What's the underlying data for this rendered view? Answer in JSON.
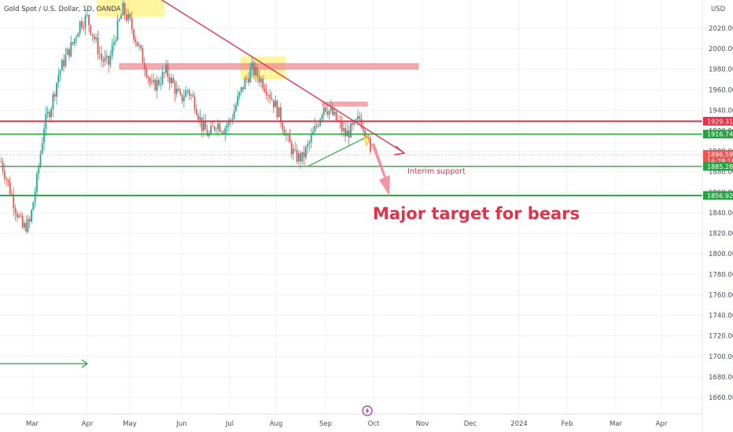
{
  "symbol_title": "Gold Spot / U.S. Dollar, 1D, OANDA",
  "currency": "USD",
  "timer": "14:28:18",
  "colors": {
    "up": "#26a69a",
    "down": "#ef5350",
    "resistance": "#e0334a",
    "support": "#2aa044",
    "grid": "#eef0f3",
    "zone_yellow": "#fff176",
    "zone_red": "#f48b95"
  },
  "chart_data": {
    "type": "candlestick",
    "x_labels": [
      "Mar",
      "Apr",
      "May",
      "Jun",
      "Jul",
      "Aug",
      "Sep",
      "Oct",
      "Nov",
      "Dec",
      "2024",
      "Feb",
      "Mar",
      "Apr"
    ],
    "y_ticks": [
      1660,
      1680,
      1700,
      1720,
      1740,
      1760,
      1780,
      1800,
      1820,
      1840,
      1860,
      1880,
      1900,
      1920,
      1940,
      1960,
      1980,
      2000,
      2020
    ],
    "ylim": [
      1640,
      2042
    ],
    "grid": true,
    "price_levels": [
      {
        "label": "1929.317",
        "value": 1929.317,
        "kind": "resistance"
      },
      {
        "label": "1916.747",
        "value": 1916.747,
        "kind": "support"
      },
      {
        "label": "1896.590",
        "value": 1896.59,
        "kind": "last"
      },
      {
        "label": "1885.282",
        "value": 1885.282,
        "kind": "support"
      },
      {
        "label": "1856.927",
        "value": 1856.927,
        "kind": "support"
      }
    ],
    "trend_path": [
      [
        0,
        1890
      ],
      [
        4,
        1868
      ],
      [
        8,
        1845
      ],
      [
        12,
        1825
      ],
      [
        16,
        1830
      ],
      [
        20,
        1872
      ],
      [
        24,
        1925
      ],
      [
        28,
        1945
      ],
      [
        32,
        1975
      ],
      [
        36,
        1992
      ],
      [
        40,
        2005
      ],
      [
        44,
        2025
      ],
      [
        48,
        2030
      ],
      [
        52,
        2010
      ],
      [
        56,
        1990
      ],
      [
        60,
        1985
      ],
      [
        64,
        2015
      ],
      [
        68,
        2038
      ],
      [
        72,
        2025
      ],
      [
        76,
        2005
      ],
      [
        80,
        1985
      ],
      [
        84,
        1962
      ],
      [
        88,
        1968
      ],
      [
        92,
        1978
      ],
      [
        96,
        1965
      ],
      [
        100,
        1950
      ],
      [
        104,
        1960
      ],
      [
        108,
        1948
      ],
      [
        112,
        1925
      ],
      [
        116,
        1915
      ],
      [
        120,
        1928
      ],
      [
        124,
        1922
      ],
      [
        128,
        1930
      ],
      [
        132,
        1950
      ],
      [
        136,
        1968
      ],
      [
        140,
        1980
      ],
      [
        144,
        1972
      ],
      [
        148,
        1962
      ],
      [
        152,
        1948
      ],
      [
        156,
        1932
      ],
      [
        160,
        1910
      ],
      [
        164,
        1895
      ],
      [
        168,
        1893
      ],
      [
        172,
        1908
      ],
      [
        176,
        1925
      ],
      [
        180,
        1945
      ],
      [
        184,
        1938
      ],
      [
        188,
        1928
      ],
      [
        192,
        1916
      ],
      [
        196,
        1922
      ],
      [
        200,
        1932
      ],
      [
        204,
        1918
      ],
      [
        206,
        1896
      ]
    ],
    "annotations": {
      "interim": "Interim support",
      "major": "Major target for bears"
    }
  }
}
